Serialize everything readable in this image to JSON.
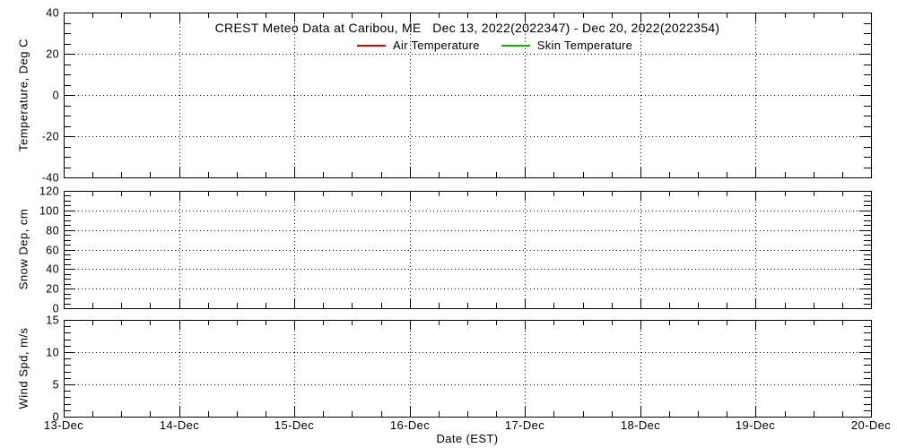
{
  "figure": {
    "title": "CREST Meteo Data at Caribou, ME   Dec 13, 2022(2022347) - Dec 20, 2022(2022354)",
    "background_color": "#ffffff",
    "axis_color": "#000000"
  },
  "legend": {
    "position": "top-center-below-title",
    "items": [
      {
        "label": "Air Temperature",
        "color": "#dd0000"
      },
      {
        "label": "Skin Temperature",
        "color": "#00bb00"
      }
    ]
  },
  "xaxis": {
    "label": "Date (EST)",
    "tick_labels": [
      "13-Dec",
      "14-Dec",
      "15-Dec",
      "16-Dec",
      "17-Dec",
      "18-Dec",
      "19-Dec",
      "20-Dec"
    ],
    "major_divisions": 7,
    "minor_per_major": 4,
    "grid": "dotted vertical lines at each day"
  },
  "chart_data": [
    {
      "type": "line",
      "panel": "temperature",
      "ylabel": "Temperature, Deg C",
      "ylim": [
        -40,
        40
      ],
      "ytick_interval": 20,
      "yminor_interval": 5,
      "ytick_labels": [
        "40",
        "20",
        "0",
        "-20",
        "-40"
      ],
      "grid": true,
      "series": [
        {
          "name": "Air Temperature",
          "color": "#dd0000",
          "x": [],
          "values": []
        },
        {
          "name": "Skin Temperature",
          "color": "#00bb00",
          "x": [],
          "values": []
        }
      ]
    },
    {
      "type": "line",
      "panel": "snow-depth",
      "ylabel": "Snow Dep, cm",
      "ylim": [
        0,
        120
      ],
      "ytick_interval": 20,
      "yminor_interval": 5,
      "ytick_labels": [
        "120",
        "100",
        "80",
        "60",
        "40",
        "20",
        "0"
      ],
      "grid": true,
      "series": []
    },
    {
      "type": "line",
      "panel": "wind-speed",
      "ylabel": "Wind Spd, m/s",
      "ylim": [
        0,
        15
      ],
      "ytick_interval": 5,
      "yminor_interval": 1,
      "ytick_labels": [
        "15",
        "10",
        "5",
        "0"
      ],
      "grid": true,
      "series": []
    }
  ]
}
